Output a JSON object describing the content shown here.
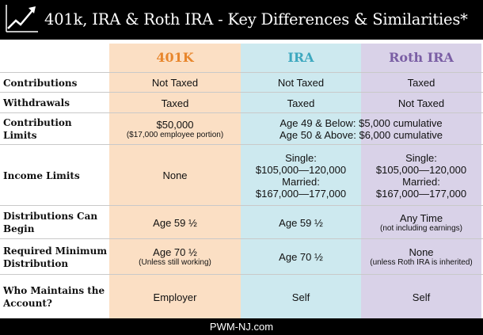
{
  "header": {
    "title": "401k, IRA & Roth IRA - Key Differences & Similarities*",
    "logo_icon": "rising-arrow-chart-icon"
  },
  "columns": {
    "c401k": "401K",
    "ira": "IRA",
    "roth": "Roth IRA"
  },
  "colors": {
    "col_401k": "#fbdfc4",
    "col_ira": "#cde9ef",
    "col_roth": "#d9d2e8",
    "head_401k": "#e8862c",
    "head_ira": "#3da8bf",
    "head_roth": "#7a5ea4"
  },
  "rows": {
    "contributions": {
      "label": "Contributions",
      "k401": "Not Taxed",
      "ira": "Not Taxed",
      "roth": "Taxed"
    },
    "withdrawals": {
      "label": "Withdrawals",
      "k401": "Taxed",
      "ira": "Taxed",
      "roth": "Not Taxed"
    },
    "contribution_limits": {
      "label": "Contribution Limits",
      "k401": "$50,000",
      "k401_note": "($17,000 employee portion)",
      "ira_roth_line1": "Age 49 & Below: $5,000 cumulative",
      "ira_roth_line2": "Age 50 & Above: $6,000 cumulative"
    },
    "income_limits": {
      "label": "Income Limits",
      "k401": "None",
      "ira": [
        "Single:",
        "$105,000—120,000",
        "Married:",
        "$167,000—177,000"
      ],
      "roth": [
        "Single:",
        "$105,000—120,000",
        "Married:",
        "$167,000—177,000"
      ]
    },
    "distributions": {
      "label_1": "Distributions Can",
      "label_2": "Begin",
      "k401": "Age 59 ½",
      "ira": "Age 59 ½",
      "roth": "Any Time",
      "roth_note": "(not including earnings)"
    },
    "rmd": {
      "label_1": "Required Minimum",
      "label_2": "Distribution",
      "k401": "Age 70 ½",
      "k401_note": "(Unless still working)",
      "ira": "Age 70 ½",
      "roth": "None",
      "roth_note": "(unless Roth IRA is inherited)"
    },
    "maintainer": {
      "label_1": "Who Maintains the",
      "label_2": "Account?",
      "k401": "Employer",
      "ira": "Self",
      "roth": "Self"
    }
  },
  "footer": {
    "text": "PWM-NJ.com"
  }
}
